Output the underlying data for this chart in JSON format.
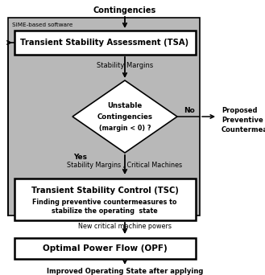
{
  "fig_width": 3.29,
  "fig_height": 3.42,
  "dpi": 100,
  "bg_color": "#ffffff",
  "gray_box_color": "#b8b8b8",
  "white_box_color": "#ffffff",
  "title_top": "Contingencies",
  "label_sime": "SIME-based software",
  "box1_title": "Transient Stability Assessment (TSA)",
  "label_stability_margins1": "Stability Margins",
  "diamond_label1": "Unstable",
  "diamond_label2": "Contingencies",
  "diamond_label3": "(margin < 0) ?",
  "label_no": "No",
  "label_yes": "Yes",
  "label_stability_margins2": "Stability Margins , Critical Machines",
  "box2_title": "Transient Stability Control (TSC)",
  "box2_sub": "Finding preventive countermeasures to\nstabilize the operating  state",
  "label_new_powers": "New critical machine powers",
  "box3_title": "Optimal Power Flow (OPF)",
  "label_bottom": "Improved Operating State after applying\nthe Preventive Countermeasures",
  "label_proposed1": "Proposed",
  "label_proposed2": "Preventive",
  "label_proposed3": "Countermeasures"
}
